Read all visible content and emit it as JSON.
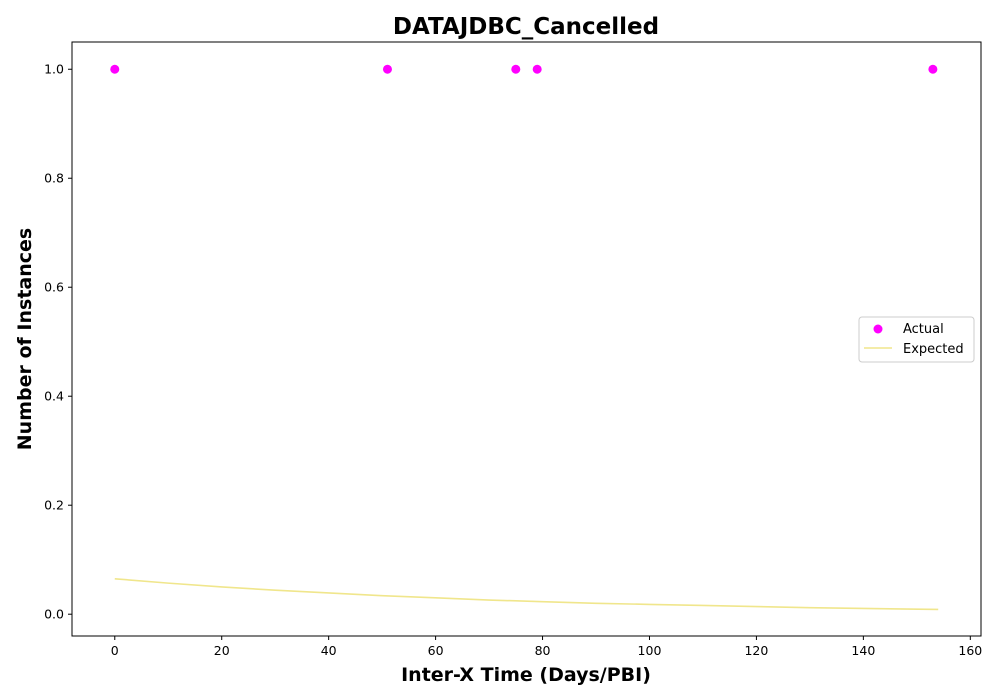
{
  "chart_data": {
    "type": "scatter",
    "title": "DATAJDBC_Cancelled",
    "xlabel": "Inter-X Time (Days/PBI)",
    "ylabel": "Number of Instances",
    "xlim": [
      -8,
      162
    ],
    "ylim": [
      -0.04,
      1.05
    ],
    "xticks": [
      0,
      20,
      40,
      60,
      80,
      100,
      120,
      140,
      160
    ],
    "xtick_labels": [
      "0",
      "20",
      "40",
      "60",
      "80",
      "100",
      "120",
      "140",
      "160"
    ],
    "yticks": [
      0.0,
      0.2,
      0.4,
      0.6,
      0.8,
      1.0
    ],
    "ytick_labels": [
      "0.0",
      "0.2",
      "0.4",
      "0.6",
      "0.8",
      "1.0"
    ],
    "grid": false,
    "legend_position": "center-right",
    "series": [
      {
        "name": "Actual",
        "kind": "scatter",
        "color": "#ff00ff",
        "x": [
          0,
          51,
          75,
          79,
          153
        ],
        "y": [
          1,
          1,
          1,
          1,
          1
        ]
      },
      {
        "name": "Expected",
        "kind": "line",
        "color": "#f0e68c",
        "x": [
          0,
          10,
          20,
          30,
          40,
          50,
          60,
          70,
          80,
          90,
          100,
          110,
          120,
          130,
          140,
          154
        ],
        "y": [
          0.065,
          0.057,
          0.05,
          0.044,
          0.039,
          0.034,
          0.03,
          0.026,
          0.023,
          0.02,
          0.018,
          0.016,
          0.014,
          0.012,
          0.0105,
          0.0087
        ]
      }
    ]
  }
}
